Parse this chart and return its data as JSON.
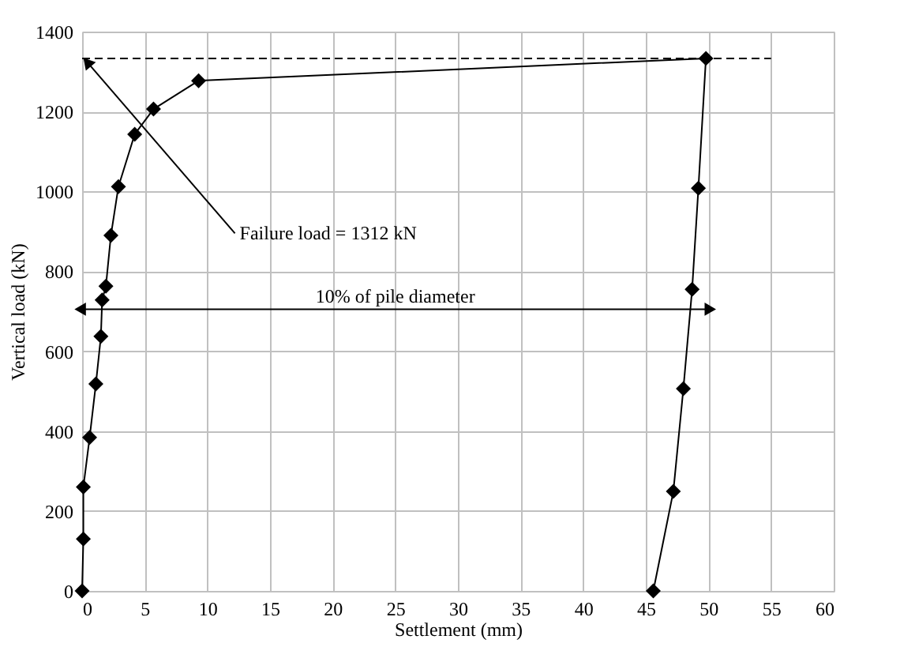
{
  "chart_data": {
    "type": "line",
    "xlabel": "Settlement (mm)",
    "ylabel": "Vertical load (kN)",
    "xlim": [
      0,
      60
    ],
    "xticks": [
      0,
      5,
      10,
      15,
      20,
      25,
      30,
      35,
      40,
      45,
      50,
      55,
      60
    ],
    "ylim": [
      0,
      1400
    ],
    "yticks": [
      0,
      200,
      400,
      600,
      800,
      1000,
      1200,
      1400
    ],
    "grid": true,
    "series": [
      {
        "color": "#000000",
        "marker": "diamond",
        "line_style": "solid",
        "x": [
          0,
          0.1,
          0.1,
          0.6,
          1.1,
          1.5,
          1.6,
          1.9,
          2.3,
          2.9,
          4.2,
          5.7,
          9.3,
          49.8,
          49.2,
          48.7,
          48.0,
          47.2,
          45.6
        ],
        "values": [
          0,
          130,
          260,
          384,
          518,
          637,
          728,
          763,
          890,
          1012,
          1143,
          1206,
          1277,
          1333,
          1008,
          755,
          506,
          249,
          0
        ]
      },
      {
        "color": "#000000",
        "marker": "none",
        "line_style": "dashed",
        "x": [
          0,
          55
        ],
        "values": [
          1333,
          1333
        ]
      },
      {
        "color": "#000000",
        "marker": "triangle",
        "line_style": "solid",
        "x": [
          0,
          50
        ],
        "values": [
          705,
          705
        ]
      },
      {
        "color": "#000000",
        "marker": "triangle",
        "line_style": "solid",
        "x": [
          12.2,
          0.5
        ],
        "values": [
          895,
          1320
        ]
      }
    ],
    "annotations": [
      "Failure load = 1312 kN",
      "10% of  pile diameter"
    ]
  }
}
